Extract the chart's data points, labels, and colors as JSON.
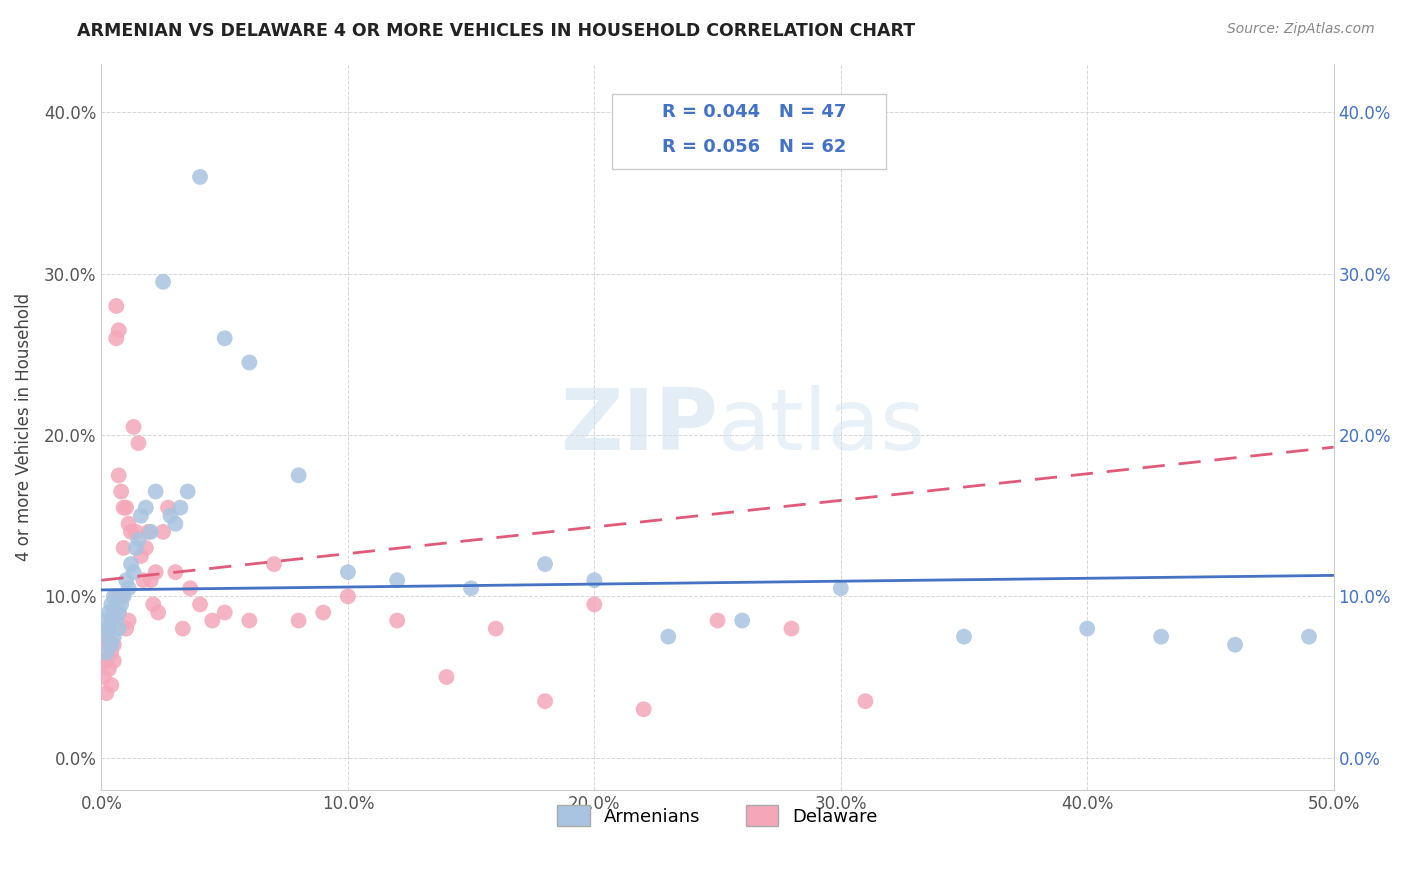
{
  "title": "ARMENIAN VS DELAWARE 4 OR MORE VEHICLES IN HOUSEHOLD CORRELATION CHART",
  "source": "Source: ZipAtlas.com",
  "ylabel": "4 or more Vehicles in Household",
  "xlim": [
    0.0,
    0.5
  ],
  "ylim": [
    -0.02,
    0.43
  ],
  "armenians_R": "0.044",
  "armenians_N": "47",
  "delaware_R": "0.056",
  "delaware_N": "62",
  "armenians_color": "#a8c4e0",
  "armenians_line_color": "#4472c4",
  "delaware_color": "#f4a7b9",
  "delaware_line_color": "#e05a7a",
  "legend_armenians": "Armenians",
  "legend_delaware": "Delaware",
  "armenians_x": [
    0.001,
    0.002,
    0.002,
    0.003,
    0.003,
    0.004,
    0.004,
    0.005,
    0.005,
    0.006,
    0.006,
    0.007,
    0.007,
    0.008,
    0.009,
    0.01,
    0.011,
    0.012,
    0.013,
    0.014,
    0.015,
    0.016,
    0.018,
    0.02,
    0.022,
    0.025,
    0.028,
    0.03,
    0.032,
    0.035,
    0.04,
    0.05,
    0.06,
    0.08,
    0.1,
    0.12,
    0.15,
    0.18,
    0.2,
    0.23,
    0.26,
    0.3,
    0.35,
    0.4,
    0.43,
    0.46,
    0.49
  ],
  "armenians_y": [
    0.075,
    0.085,
    0.065,
    0.09,
    0.08,
    0.095,
    0.07,
    0.1,
    0.075,
    0.095,
    0.085,
    0.08,
    0.09,
    0.095,
    0.1,
    0.11,
    0.105,
    0.12,
    0.115,
    0.13,
    0.135,
    0.15,
    0.155,
    0.14,
    0.165,
    0.295,
    0.15,
    0.145,
    0.155,
    0.165,
    0.36,
    0.26,
    0.245,
    0.175,
    0.115,
    0.11,
    0.105,
    0.12,
    0.11,
    0.075,
    0.085,
    0.105,
    0.075,
    0.08,
    0.075,
    0.07,
    0.075
  ],
  "delaware_x": [
    0.001,
    0.001,
    0.002,
    0.002,
    0.002,
    0.003,
    0.003,
    0.003,
    0.004,
    0.004,
    0.004,
    0.005,
    0.005,
    0.005,
    0.006,
    0.006,
    0.006,
    0.007,
    0.007,
    0.007,
    0.008,
    0.008,
    0.009,
    0.009,
    0.01,
    0.01,
    0.011,
    0.011,
    0.012,
    0.013,
    0.014,
    0.015,
    0.016,
    0.017,
    0.018,
    0.019,
    0.02,
    0.021,
    0.022,
    0.023,
    0.025,
    0.027,
    0.03,
    0.033,
    0.036,
    0.04,
    0.045,
    0.05,
    0.06,
    0.07,
    0.08,
    0.09,
    0.1,
    0.12,
    0.14,
    0.16,
    0.18,
    0.2,
    0.22,
    0.25,
    0.28,
    0.31
  ],
  "delaware_y": [
    0.06,
    0.05,
    0.075,
    0.06,
    0.04,
    0.07,
    0.055,
    0.08,
    0.065,
    0.085,
    0.045,
    0.07,
    0.09,
    0.06,
    0.28,
    0.26,
    0.1,
    0.265,
    0.175,
    0.09,
    0.165,
    0.1,
    0.155,
    0.13,
    0.08,
    0.155,
    0.145,
    0.085,
    0.14,
    0.205,
    0.14,
    0.195,
    0.125,
    0.11,
    0.13,
    0.14,
    0.11,
    0.095,
    0.115,
    0.09,
    0.14,
    0.155,
    0.115,
    0.08,
    0.105,
    0.095,
    0.085,
    0.09,
    0.085,
    0.12,
    0.085,
    0.09,
    0.1,
    0.085,
    0.05,
    0.08,
    0.035,
    0.095,
    0.03,
    0.085,
    0.08,
    0.035
  ]
}
